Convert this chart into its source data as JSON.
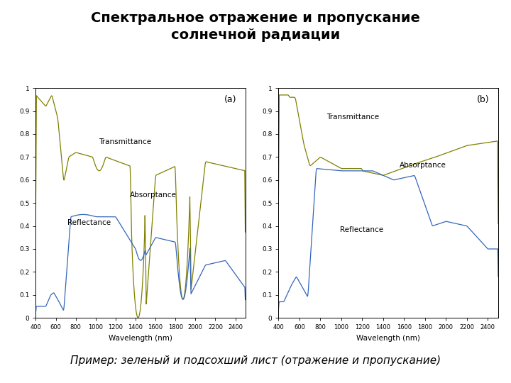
{
  "title": "Спектральное отражение и пропускание\nсолнечной радиации",
  "subtitle": "Пример: зеленый и подсохший лист (отражение и пропускание)",
  "title_fontsize": 14,
  "subtitle_fontsize": 11,
  "xlabel": "Wavelength (nm)",
  "xmin": 400,
  "xmax": 2500,
  "ymin": 0,
  "ymax": 1.0,
  "olive_color": "#808000",
  "blue_color": "#3366BB",
  "background": "#ffffff",
  "panel_a_label": "(a)",
  "panel_b_label": "(b)"
}
